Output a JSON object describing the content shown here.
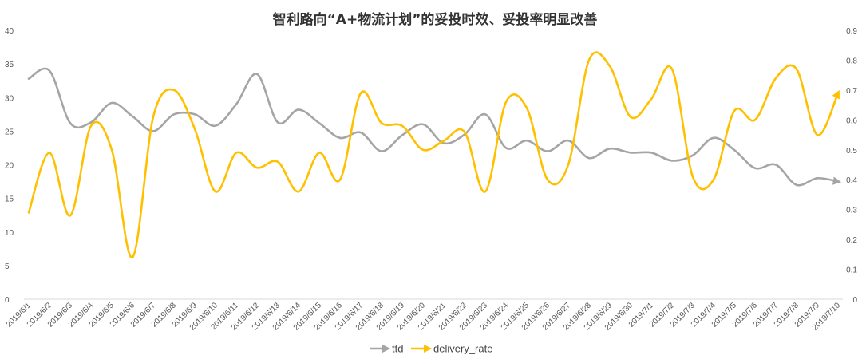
{
  "chart_data": {
    "type": "line",
    "title": "智利路向“A+物流计划”的妥投时效、妥投率明显改善",
    "x": [
      "2019/6/1",
      "2019/6/2",
      "2019/6/3",
      "2019/6/4",
      "2019/6/5",
      "2019/6/6",
      "2019/6/7",
      "2019/6/8",
      "2019/6/9",
      "2019/6/10",
      "2019/6/11",
      "2019/6/12",
      "2019/6/13",
      "2019/6/14",
      "2019/6/15",
      "2019/6/16",
      "2019/6/17",
      "2019/6/18",
      "2019/6/19",
      "2019/6/20",
      "2019/6/21",
      "2019/6/22",
      "2019/6/23",
      "2019/6/24",
      "2019/6/25",
      "2019/6/26",
      "2019/6/27",
      "2019/6/28",
      "2019/6/29",
      "2019/6/30",
      "2019/7/1",
      "2019/7/2",
      "2019/7/3",
      "2019/7/4",
      "2019/7/5",
      "2019/7/6",
      "2019/7/7",
      "2019/7/8",
      "2019/7/9",
      "2019/7/10"
    ],
    "series": [
      {
        "name": "ttd",
        "axis": "left",
        "color": "#A5A5A5",
        "values": [
          32.8,
          34.0,
          26.2,
          26.3,
          29.2,
          27.2,
          25.0,
          27.5,
          27.5,
          25.8,
          29.0,
          33.5,
          26.3,
          28.2,
          26.2,
          24.0,
          24.8,
          22.0,
          24.4,
          26.0,
          23.2,
          24.5,
          27.5,
          22.5,
          23.6,
          22.0,
          23.6,
          21.0,
          22.4,
          21.8,
          21.8,
          20.6,
          21.4,
          24.0,
          22.2,
          19.5,
          20.0,
          17.0,
          18.0,
          17.5
        ]
      },
      {
        "name": "delivery_rate",
        "axis": "right",
        "color": "#FFC000",
        "values": [
          0.29,
          0.49,
          0.28,
          0.58,
          0.5,
          0.14,
          0.61,
          0.7,
          0.57,
          0.36,
          0.49,
          0.44,
          0.46,
          0.36,
          0.49,
          0.4,
          0.69,
          0.59,
          0.58,
          0.5,
          0.53,
          0.56,
          0.36,
          0.66,
          0.64,
          0.4,
          0.45,
          0.8,
          0.78,
          0.61,
          0.67,
          0.77,
          0.41,
          0.4,
          0.63,
          0.6,
          0.74,
          0.77,
          0.55,
          0.69
        ]
      }
    ],
    "yaxis_left": {
      "min": 0,
      "max": 40,
      "ticks": [
        "0",
        "5",
        "10",
        "15",
        "20",
        "25",
        "30",
        "35",
        "40"
      ]
    },
    "yaxis_right": {
      "min": 0,
      "max": 0.9,
      "ticks": [
        "0",
        "0.1",
        "0.2",
        "0.3",
        "0.4",
        "0.5",
        "0.6",
        "0.7",
        "0.8",
        "0.9"
      ]
    },
    "grid": false,
    "legend_position": "bottom-center"
  }
}
